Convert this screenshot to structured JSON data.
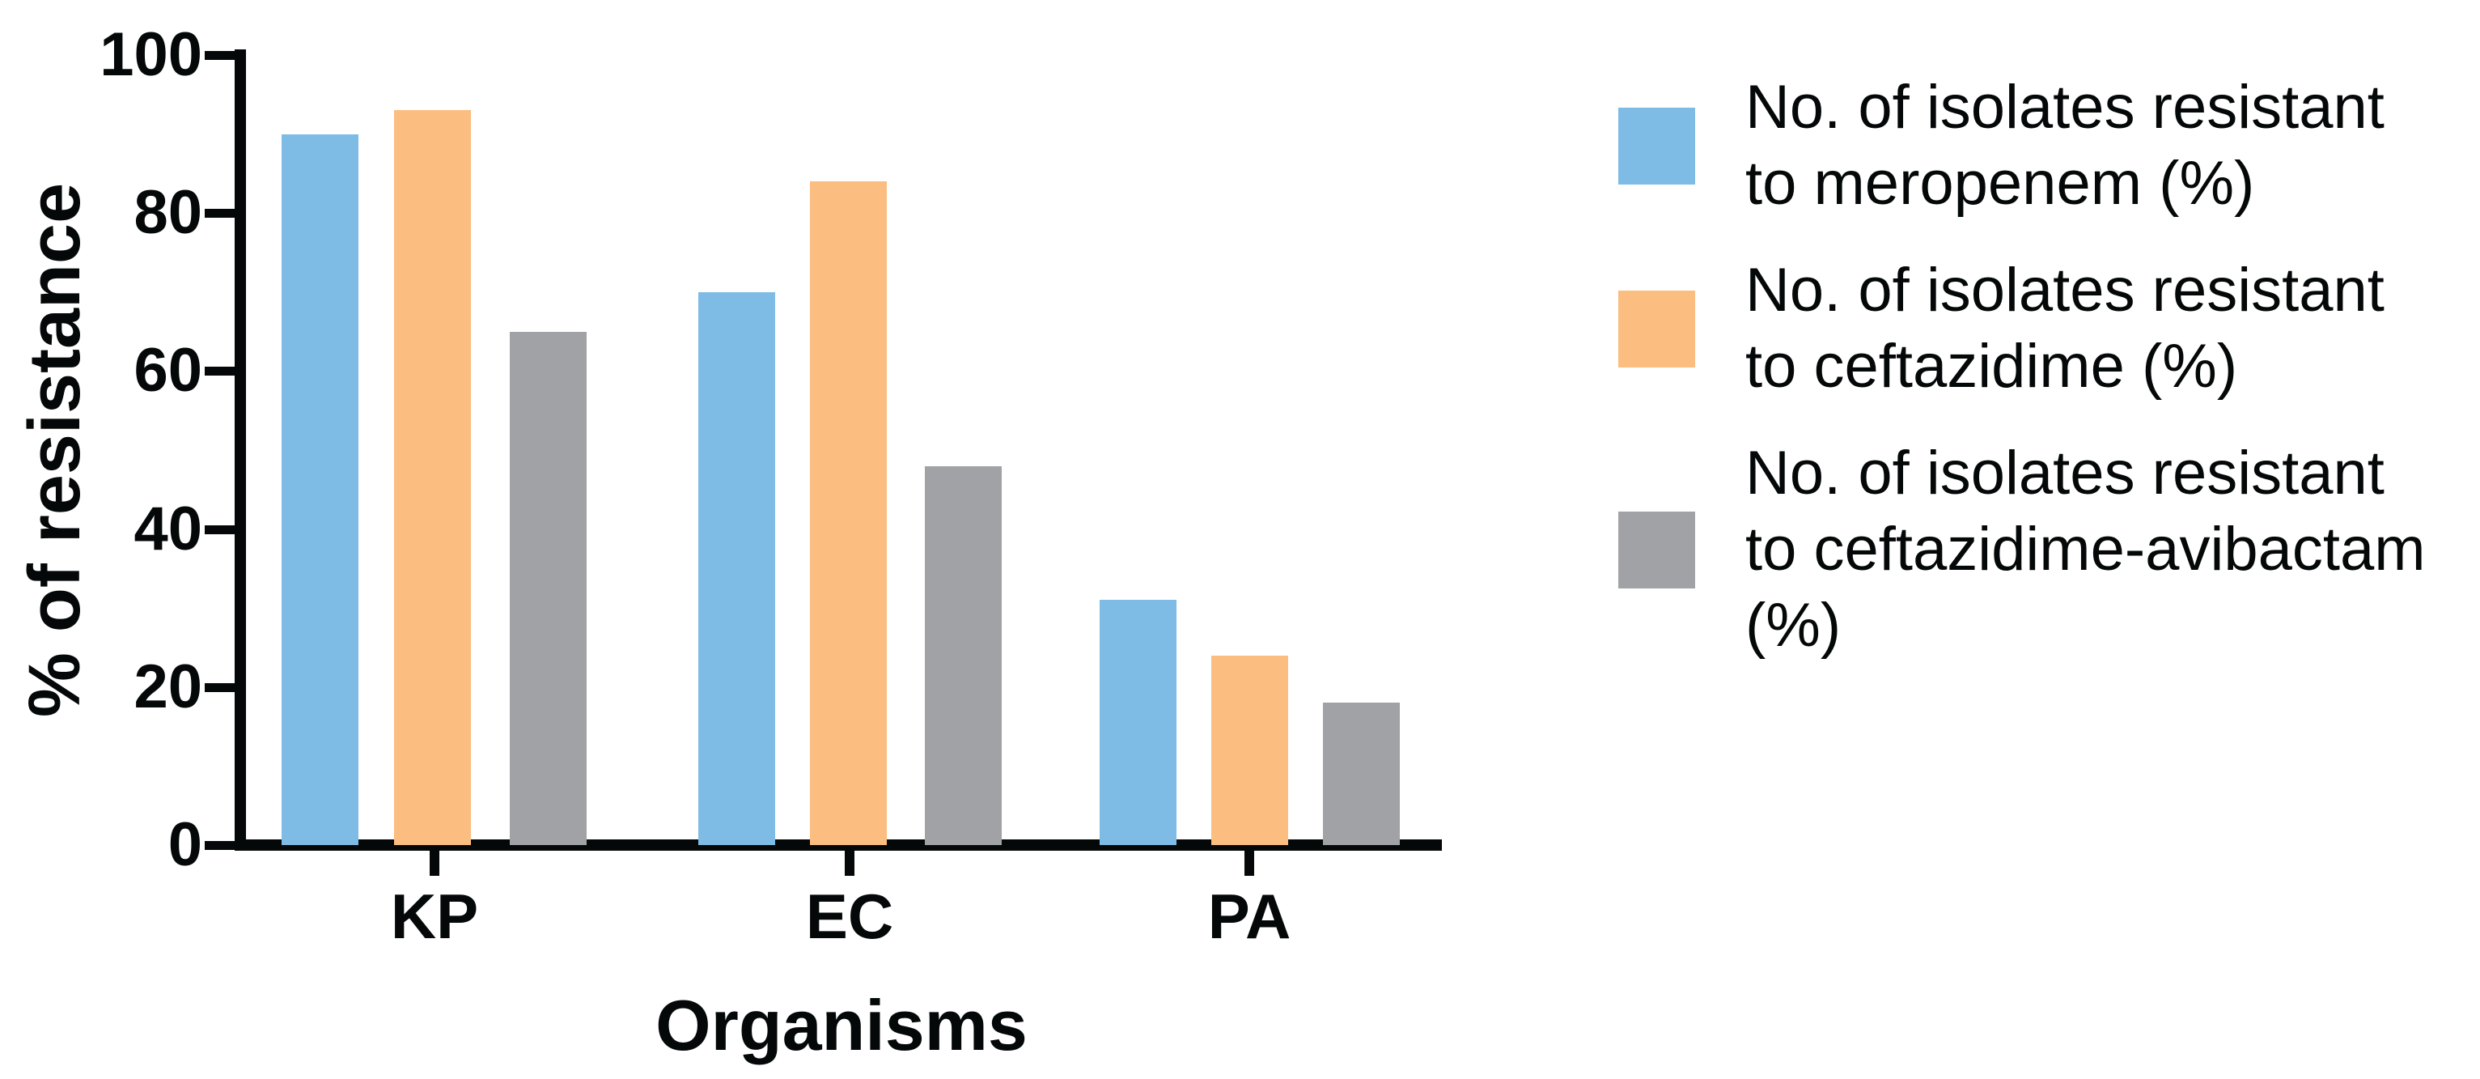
{
  "chart_data": {
    "type": "bar",
    "title": "",
    "categories": [
      "KP",
      "EC",
      "PA"
    ],
    "series": [
      {
        "name": "No. of isolates resistant to meropenem (%)",
        "color": "#7FBCE5",
        "values": [
          90,
          70,
          31
        ]
      },
      {
        "name": "No. of isolates resistant to ceftazidime (%)",
        "color": "#FBBD80",
        "values": [
          93,
          84,
          24
        ]
      },
      {
        "name": "No. of isolates resistant to ceftazidime-avibactam (%)",
        "color": "#A1A2A6",
        "values": [
          65,
          48,
          18
        ]
      }
    ],
    "xlabel": "Organisms",
    "ylabel": "% of resistance",
    "ylim": [
      0,
      100
    ],
    "yticks": [
      0,
      20,
      40,
      60,
      80,
      100
    ],
    "grid": false,
    "legend_position": "right",
    "axis_color": "#050808"
  },
  "legend": {
    "items": [
      {
        "swatch_color": "#7FBCE5",
        "lines": [
          "No. of isolates resistant",
          "to meropenem (%)"
        ]
      },
      {
        "swatch_color": "#FBBD80",
        "lines": [
          "No. of isolates resistant",
          "to ceftazidime (%)"
        ]
      },
      {
        "swatch_color": "#A1A2A6",
        "lines": [
          "No. of isolates resistant",
          "to ceftazidime-avibactam",
          "(%)"
        ]
      }
    ]
  }
}
